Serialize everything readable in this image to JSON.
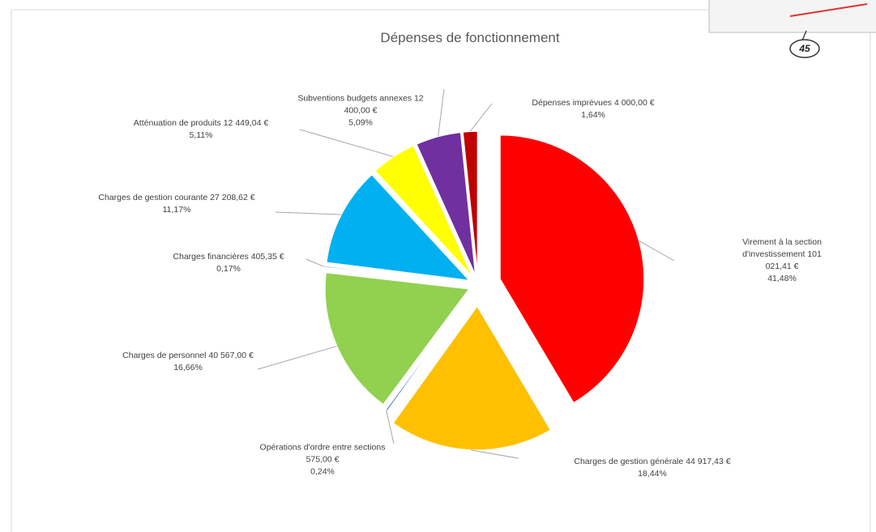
{
  "chart_data": {
    "type": "pie",
    "title": "Dépenses de fonctionnement",
    "categories": [
      "Virement à la section d'investissement 101 021,41 €",
      "Charges de gestion générale 44 917,43 €",
      "Opérations d'ordre entre sections 575,00 €",
      "Charges de personnel 40 567,00 €",
      "Charges financières 405,35 €",
      "Charges de gestion courante 27 208,62 €",
      "Atténuation de produits 12 449,04 €",
      "Subventions budgets annexes 12 400,00 €",
      "Dépenses imprévues 4 000,00 €"
    ],
    "values": [
      41.48,
      18.44,
      0.24,
      16.66,
      0.17,
      11.17,
      5.11,
      5.09,
      1.64
    ],
    "value_labels": [
      "41,48%",
      "18,44%",
      "0,24%",
      "16,66%",
      "0,17%",
      "11,17%",
      "5,11%",
      "5,09%",
      "1,64%"
    ],
    "colors": [
      "#ff0000",
      "#ffc000",
      "#4472c4",
      "#92d050",
      "#2e75b6",
      "#00b0f0",
      "#ffff00",
      "#7030a0",
      "#c00000"
    ]
  },
  "corner_note": "45"
}
